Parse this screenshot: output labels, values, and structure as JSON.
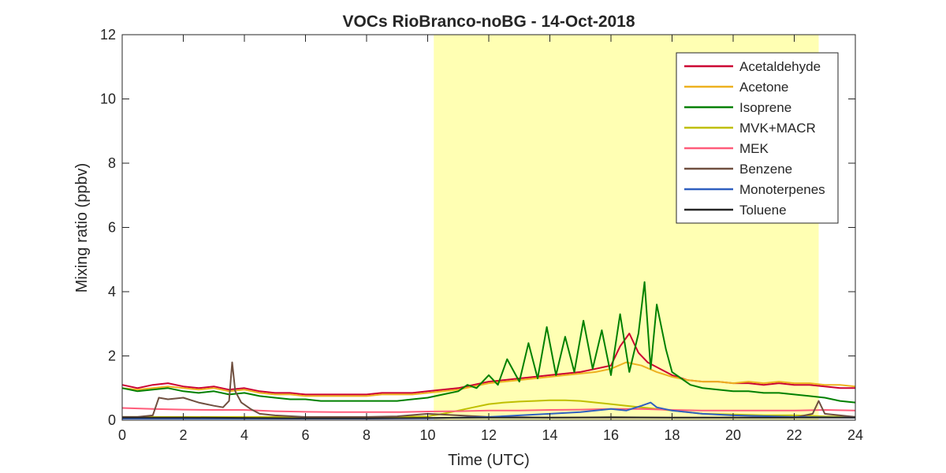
{
  "chart_data": {
    "type": "line",
    "title": "VOCs RioBranco-noBG - 14-Oct-2018",
    "xlabel": "Time (UTC)",
    "ylabel": "Mixing ratio (ppbv)",
    "xlim": [
      0,
      24
    ],
    "ylim": [
      0,
      12
    ],
    "xticks": [
      0,
      2,
      4,
      6,
      8,
      10,
      12,
      14,
      16,
      18,
      20,
      22,
      24
    ],
    "yticks": [
      0,
      2,
      4,
      6,
      8,
      10,
      12
    ],
    "grid": false,
    "legend_position": "top-right",
    "daylight_band": {
      "x_start": 10.2,
      "x_end": 22.8,
      "color": "#ffffb3"
    },
    "series": [
      {
        "name": "Acetaldehyde",
        "color": "#cc0033",
        "x": [
          0,
          0.5,
          1,
          1.5,
          2,
          2.5,
          3,
          3.5,
          4,
          4.5,
          5,
          5.5,
          6,
          6.5,
          7,
          7.5,
          8,
          8.5,
          9,
          9.5,
          10,
          10.5,
          11,
          11.5,
          12,
          12.5,
          13,
          13.5,
          14,
          14.5,
          15,
          15.5,
          16,
          16.3,
          16.6,
          16.9,
          17.2,
          17.6,
          18,
          18.5,
          19,
          19.5,
          20,
          20.5,
          21,
          21.5,
          22,
          22.5,
          23,
          23.5,
          24
        ],
        "y": [
          1.1,
          1.0,
          1.1,
          1.15,
          1.05,
          1.0,
          1.05,
          0.95,
          1.0,
          0.9,
          0.85,
          0.85,
          0.8,
          0.8,
          0.8,
          0.8,
          0.8,
          0.85,
          0.85,
          0.85,
          0.9,
          0.95,
          1.0,
          1.1,
          1.2,
          1.25,
          1.3,
          1.35,
          1.4,
          1.45,
          1.5,
          1.6,
          1.7,
          2.3,
          2.7,
          2.1,
          1.8,
          1.6,
          1.4,
          1.25,
          1.2,
          1.2,
          1.15,
          1.15,
          1.1,
          1.15,
          1.1,
          1.1,
          1.05,
          1.0,
          1.0
        ]
      },
      {
        "name": "Acetone",
        "color": "#edb120",
        "x": [
          0,
          0.5,
          1,
          1.5,
          2,
          2.5,
          3,
          3.5,
          4,
          4.5,
          5,
          5.5,
          6,
          6.5,
          7,
          7.5,
          8,
          8.5,
          9,
          9.5,
          10,
          10.5,
          11,
          11.5,
          12,
          12.5,
          13,
          13.5,
          14,
          14.5,
          15,
          15.5,
          16,
          16.5,
          17,
          17.5,
          18,
          18.5,
          19,
          19.5,
          20,
          20.5,
          21,
          21.5,
          22,
          22.5,
          23,
          23.5,
          24
        ],
        "y": [
          1.0,
          0.95,
          1.0,
          1.05,
          1.0,
          0.95,
          1.0,
          0.9,
          0.95,
          0.85,
          0.8,
          0.8,
          0.75,
          0.75,
          0.75,
          0.75,
          0.75,
          0.8,
          0.8,
          0.8,
          0.85,
          0.9,
          0.95,
          1.05,
          1.15,
          1.2,
          1.25,
          1.3,
          1.35,
          1.4,
          1.45,
          1.5,
          1.6,
          1.8,
          1.7,
          1.5,
          1.35,
          1.25,
          1.2,
          1.2,
          1.15,
          1.2,
          1.15,
          1.2,
          1.15,
          1.15,
          1.1,
          1.1,
          1.05
        ]
      },
      {
        "name": "Isoprene",
        "color": "#008000",
        "x": [
          0,
          0.5,
          1,
          1.5,
          2,
          2.5,
          3,
          3.5,
          4,
          4.5,
          5,
          5.5,
          6,
          6.5,
          7,
          7.5,
          8,
          8.5,
          9,
          9.5,
          10,
          10.5,
          11,
          11.3,
          11.6,
          12,
          12.3,
          12.6,
          13,
          13.3,
          13.6,
          13.9,
          14.2,
          14.5,
          14.8,
          15.1,
          15.4,
          15.7,
          16,
          16.3,
          16.6,
          16.9,
          17.1,
          17.3,
          17.5,
          17.8,
          18,
          18.3,
          18.6,
          19,
          19.5,
          20,
          20.5,
          21,
          21.5,
          22,
          22.5,
          23,
          23.5,
          24
        ],
        "y": [
          1.0,
          0.9,
          0.95,
          1.0,
          0.9,
          0.85,
          0.9,
          0.8,
          0.85,
          0.75,
          0.7,
          0.65,
          0.65,
          0.6,
          0.6,
          0.6,
          0.6,
          0.6,
          0.6,
          0.65,
          0.7,
          0.8,
          0.9,
          1.1,
          1.0,
          1.4,
          1.1,
          1.9,
          1.2,
          2.4,
          1.3,
          2.9,
          1.4,
          2.6,
          1.5,
          3.1,
          1.6,
          2.8,
          1.4,
          3.3,
          1.5,
          2.7,
          4.3,
          1.6,
          3.6,
          2.2,
          1.5,
          1.3,
          1.1,
          1.0,
          0.95,
          0.9,
          0.9,
          0.85,
          0.85,
          0.8,
          0.75,
          0.7,
          0.6,
          0.55
        ]
      },
      {
        "name": "MVK+MACR",
        "color": "#bfbf00",
        "x": [
          0,
          1,
          2,
          3,
          4,
          5,
          6,
          7,
          8,
          9,
          10,
          10.5,
          11,
          11.5,
          12,
          12.5,
          13,
          13.5,
          14,
          14.5,
          15,
          15.5,
          16,
          16.5,
          17,
          17.5,
          18,
          18.5,
          19,
          20,
          21,
          22,
          23,
          24
        ],
        "y": [
          0.1,
          0.1,
          0.1,
          0.1,
          0.1,
          0.1,
          0.08,
          0.08,
          0.08,
          0.1,
          0.12,
          0.2,
          0.3,
          0.4,
          0.5,
          0.55,
          0.58,
          0.6,
          0.62,
          0.62,
          0.6,
          0.55,
          0.5,
          0.45,
          0.4,
          0.35,
          0.3,
          0.25,
          0.2,
          0.18,
          0.15,
          0.15,
          0.12,
          0.1
        ]
      },
      {
        "name": "MEK",
        "color": "#ff5c7a",
        "x": [
          0,
          1,
          2,
          3,
          4,
          5,
          6,
          7,
          8,
          9,
          10,
          11,
          12,
          13,
          14,
          15,
          16,
          17,
          18,
          19,
          20,
          21,
          22,
          23,
          24
        ],
        "y": [
          0.38,
          0.35,
          0.33,
          0.32,
          0.32,
          0.28,
          0.26,
          0.25,
          0.25,
          0.25,
          0.27,
          0.28,
          0.3,
          0.3,
          0.32,
          0.33,
          0.35,
          0.35,
          0.32,
          0.3,
          0.3,
          0.3,
          0.3,
          0.32,
          0.3
        ]
      },
      {
        "name": "Benzene",
        "color": "#705040",
        "x": [
          0,
          0.5,
          1,
          1.2,
          1.5,
          2,
          2.5,
          3,
          3.3,
          3.5,
          3.6,
          3.7,
          3.9,
          4.2,
          4.5,
          5,
          6,
          7,
          8,
          9,
          10,
          11,
          12,
          14,
          16,
          18,
          20,
          22,
          22.6,
          22.8,
          23,
          24
        ],
        "y": [
          0.1,
          0.1,
          0.15,
          0.7,
          0.65,
          0.7,
          0.55,
          0.45,
          0.4,
          0.6,
          1.8,
          0.9,
          0.55,
          0.35,
          0.2,
          0.15,
          0.1,
          0.1,
          0.1,
          0.12,
          0.2,
          0.15,
          0.1,
          0.08,
          0.08,
          0.08,
          0.08,
          0.08,
          0.2,
          0.6,
          0.2,
          0.1
        ]
      },
      {
        "name": "Monoterpenes",
        "color": "#3060c0",
        "x": [
          0,
          2,
          4,
          6,
          8,
          10,
          11,
          12,
          13,
          14,
          15,
          15.5,
          16,
          16.5,
          17,
          17.3,
          17.5,
          18,
          19,
          20,
          22,
          24
        ],
        "y": [
          0.05,
          0.05,
          0.05,
          0.05,
          0.05,
          0.06,
          0.08,
          0.1,
          0.15,
          0.2,
          0.25,
          0.3,
          0.35,
          0.3,
          0.45,
          0.55,
          0.4,
          0.3,
          0.2,
          0.15,
          0.1,
          0.08
        ]
      },
      {
        "name": "Toluene",
        "color": "#262626",
        "x": [
          0,
          2,
          4,
          6,
          8,
          10,
          12,
          14,
          16,
          18,
          20,
          22,
          24
        ],
        "y": [
          0.08,
          0.08,
          0.07,
          0.06,
          0.06,
          0.07,
          0.08,
          0.08,
          0.09,
          0.08,
          0.08,
          0.08,
          0.08
        ]
      }
    ]
  }
}
